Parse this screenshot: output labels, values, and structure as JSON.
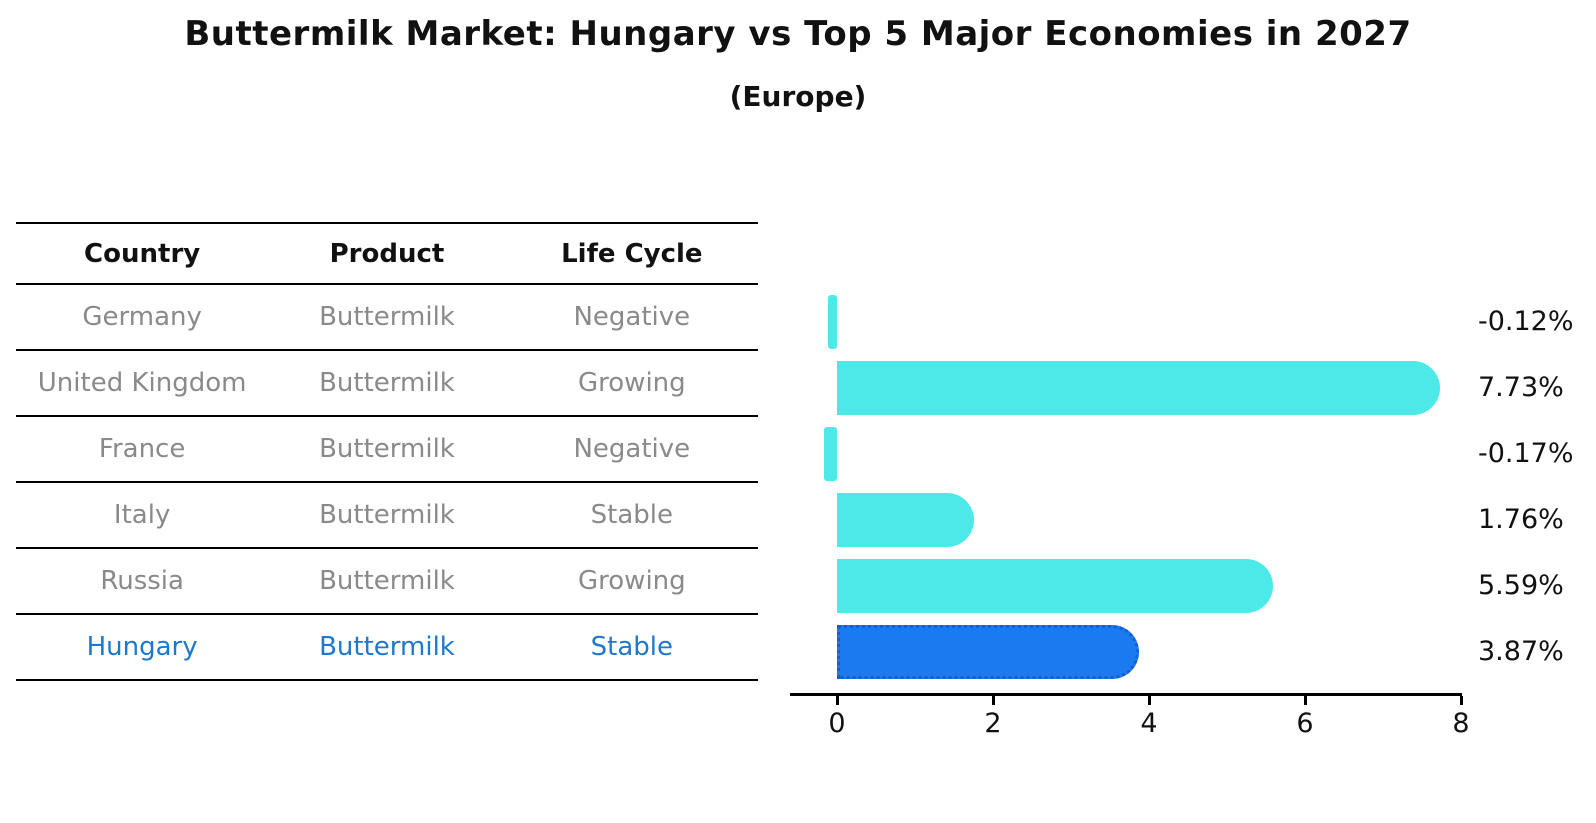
{
  "page": {
    "title": "Buttermilk Market: Hungary vs Top 5 Major Economies in 2027",
    "subtitle": "(Europe)"
  },
  "table": {
    "headers": [
      "Country",
      "Product",
      "Life Cycle"
    ],
    "rows": [
      {
        "country": "Germany",
        "product": "Buttermilk",
        "life_cycle": "Negative"
      },
      {
        "country": "United Kingdom",
        "product": "Buttermilk",
        "life_cycle": "Growing"
      },
      {
        "country": "France",
        "product": "Buttermilk",
        "life_cycle": "Negative"
      },
      {
        "country": "Italy",
        "product": "Buttermilk",
        "life_cycle": "Stable"
      },
      {
        "country": "Russia",
        "product": "Buttermilk",
        "life_cycle": "Growing"
      },
      {
        "country": "Hungary",
        "product": "Buttermilk",
        "life_cycle": "Stable"
      }
    ],
    "highlight_row": "Hungary"
  },
  "chart_data": {
    "type": "bar",
    "orientation": "horizontal",
    "title": "Buttermilk Market: Hungary vs Top 5 Major Economies in 2027",
    "subtitle": "(Europe)",
    "categories": [
      "Germany",
      "United Kingdom",
      "France",
      "Italy",
      "Russia",
      "Hungary"
    ],
    "values": [
      -0.12,
      7.73,
      -0.17,
      1.76,
      5.59,
      3.87
    ],
    "value_labels": [
      "-0.12%",
      "7.73%",
      "-0.17%",
      "1.76%",
      "5.59%",
      "3.87%"
    ],
    "x_ticks": [
      0,
      2,
      4,
      6,
      8
    ],
    "x_tick_labels": [
      "0",
      "2",
      "4",
      "6",
      "8"
    ],
    "xlim": [
      -0.6,
      8.0
    ],
    "grid": false,
    "highlight_index": 5
  },
  "colors": {
    "background": "#ffffff",
    "title_text": "#111111",
    "header_text": "#111111",
    "row_text": "#8a8a8a",
    "highlight_text": "#1E78CC",
    "table_line": "#000000",
    "axis": "#000000",
    "bar": "#4DE9E9",
    "highlight_bar": "#1B7AF0",
    "highlight_bar_border": "#145FCC",
    "value_label": "#111111"
  }
}
